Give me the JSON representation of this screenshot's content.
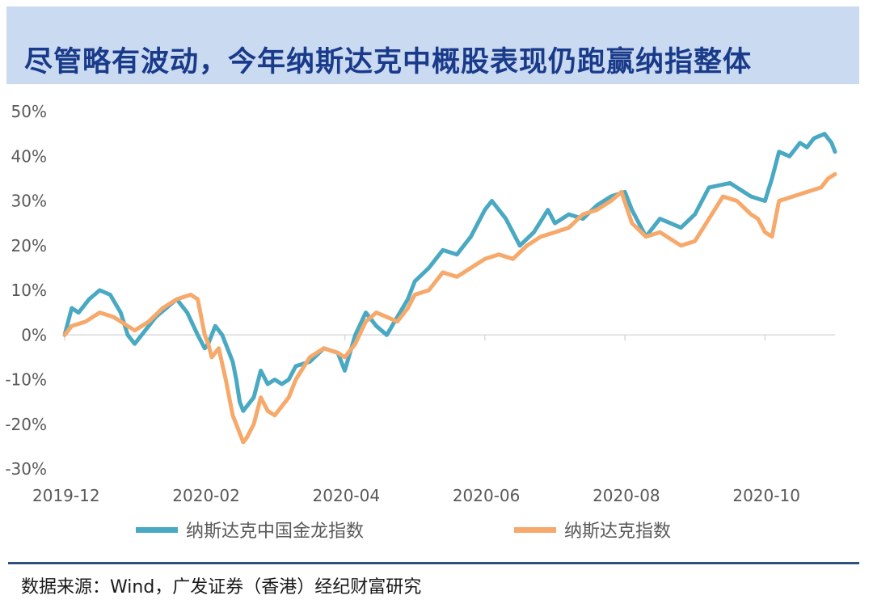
{
  "title": "尽管略有波动，今年纳斯达克中概股表现仍跑赢纳指整体",
  "source": "数据来源：Wind，广发证券（香港）经纪财富研究",
  "colors": {
    "golden_dragon": "#4aa9c2",
    "nasdaq": "#f6a96b",
    "grid": "#d9d9d9",
    "axis_text": "#595959"
  },
  "chart_data": {
    "type": "line",
    "title": "尽管略有波动，今年纳斯达克中概股表现仍跑赢纳指整体",
    "xlabel": "",
    "ylabel": "",
    "x_range": [
      0,
      11
    ],
    "ylim": [
      -30,
      50
    ],
    "yticks": [
      50,
      40,
      30,
      20,
      10,
      0,
      -10,
      -20,
      -30
    ],
    "ytick_labels": [
      "50%",
      "40%",
      "30%",
      "20%",
      "10%",
      "0%",
      "-10%",
      "-20%",
      "-30%"
    ],
    "xticks": [
      0,
      2,
      4,
      6,
      8,
      10
    ],
    "xtick_labels": [
      "2019-12",
      "2020-02",
      "2020-04",
      "2020-06",
      "2020-08",
      "2020-10"
    ],
    "legend_position": "bottom",
    "series": [
      {
        "name": "纳斯达克中国金龙指数",
        "color": "#4aa9c2",
        "x": [
          0,
          0.1,
          0.2,
          0.35,
          0.5,
          0.65,
          0.8,
          0.9,
          1.0,
          1.1,
          1.2,
          1.3,
          1.45,
          1.6,
          1.75,
          1.9,
          2.0,
          2.05,
          2.15,
          2.25,
          2.4,
          2.45,
          2.5,
          2.55,
          2.6,
          2.7,
          2.8,
          2.9,
          3.0,
          3.1,
          3.2,
          3.3,
          3.5,
          3.7,
          3.9,
          4.0,
          4.15,
          4.3,
          4.45,
          4.6,
          4.75,
          4.9,
          5.0,
          5.2,
          5.4,
          5.6,
          5.8,
          6.0,
          6.1,
          6.3,
          6.5,
          6.7,
          6.9,
          7.0,
          7.2,
          7.4,
          7.6,
          7.8,
          8.0,
          8.1,
          8.3,
          8.5,
          8.8,
          9.0,
          9.2,
          9.5,
          9.8,
          10.0,
          10.1,
          10.2,
          10.35,
          10.5,
          10.6,
          10.7,
          10.85,
          10.95,
          11.0
        ],
        "values": [
          0,
          6,
          5,
          8,
          10,
          9,
          5,
          0,
          -2,
          0,
          2,
          4,
          6,
          8,
          5,
          0,
          -3,
          -2,
          2,
          0,
          -6,
          -10,
          -15,
          -17,
          -16,
          -14,
          -8,
          -11,
          -10,
          -11,
          -10,
          -7,
          -6,
          -3,
          -4,
          -8,
          0,
          5,
          2,
          0,
          4,
          8,
          12,
          15,
          19,
          18,
          22,
          28,
          30,
          26,
          20,
          23,
          28,
          25,
          27,
          26,
          29,
          31,
          32,
          28,
          22,
          26,
          24,
          27,
          33,
          34,
          31,
          30,
          35,
          41,
          40,
          43,
          42,
          44,
          45,
          43,
          41
        ]
      },
      {
        "name": "纳斯达克指数",
        "color": "#f6a96b",
        "x": [
          0,
          0.1,
          0.3,
          0.5,
          0.7,
          0.9,
          1.0,
          1.2,
          1.4,
          1.6,
          1.8,
          1.9,
          2.0,
          2.05,
          2.1,
          2.2,
          2.3,
          2.4,
          2.5,
          2.55,
          2.6,
          2.7,
          2.8,
          2.9,
          3.0,
          3.1,
          3.2,
          3.3,
          3.5,
          3.7,
          3.9,
          4.0,
          4.15,
          4.3,
          4.45,
          4.6,
          4.75,
          4.9,
          5.0,
          5.2,
          5.4,
          5.6,
          5.8,
          6.0,
          6.2,
          6.4,
          6.6,
          6.8,
          7.0,
          7.2,
          7.4,
          7.6,
          7.8,
          7.95,
          8.1,
          8.3,
          8.5,
          8.8,
          9.0,
          9.2,
          9.4,
          9.6,
          9.8,
          9.9,
          10.0,
          10.1,
          10.2,
          10.4,
          10.6,
          10.8,
          10.9,
          11.0
        ],
        "values": [
          0,
          2,
          3,
          5,
          4,
          2,
          1,
          3,
          6,
          8,
          9,
          8,
          0,
          -2,
          -5,
          -3,
          -10,
          -18,
          -22,
          -24,
          -23,
          -20,
          -14,
          -17,
          -18,
          -16,
          -14,
          -10,
          -5,
          -3,
          -4,
          -5,
          -2,
          3,
          5,
          4,
          3,
          6,
          9,
          10,
          14,
          13,
          15,
          17,
          18,
          17,
          20,
          22,
          23,
          24,
          27,
          28,
          30,
          32,
          25,
          22,
          23,
          20,
          21,
          26,
          31,
          30,
          27,
          26,
          23,
          22,
          30,
          31,
          32,
          33,
          35,
          36
        ]
      }
    ]
  }
}
